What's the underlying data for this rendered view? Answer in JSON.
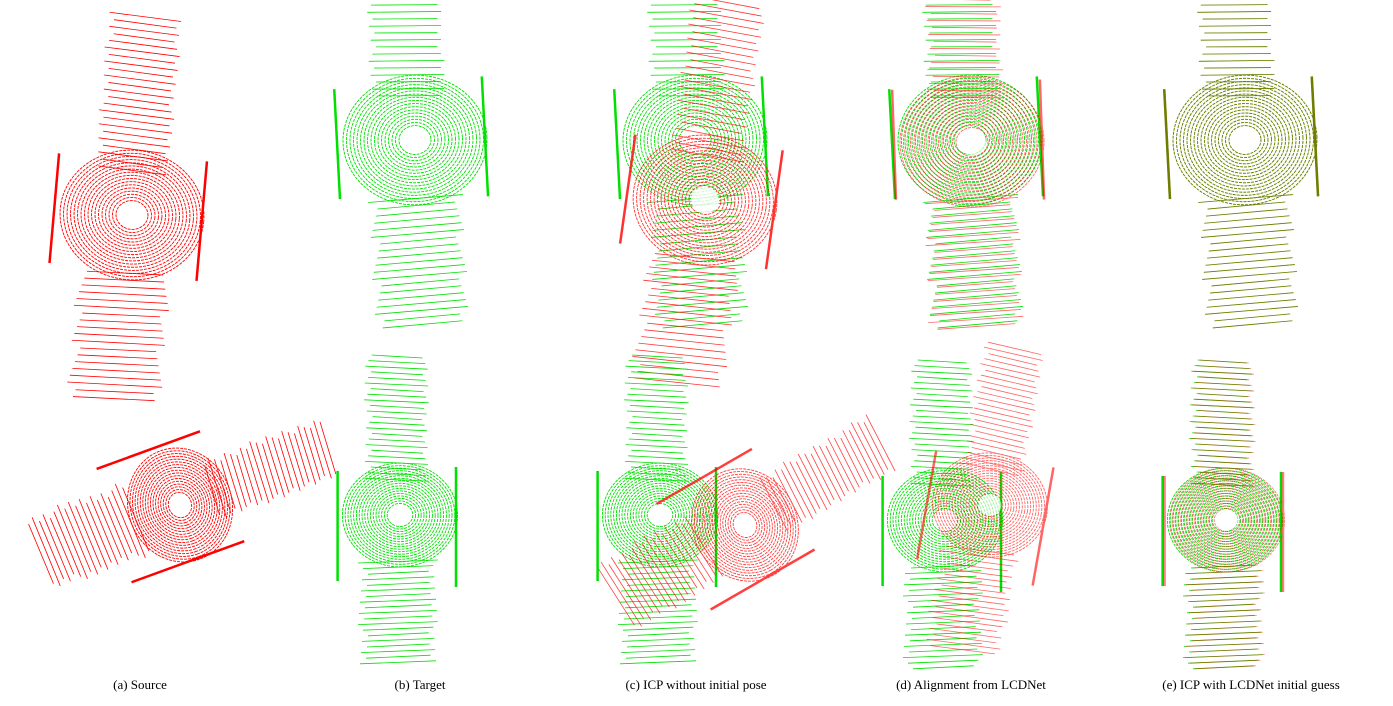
{
  "captions": [
    "(a) Source",
    "(b) Target",
    "(c) ICP without initial pose",
    "(d) Alignment from LCDNet",
    "(e) ICP with LCDNet initial guess"
  ]
}
